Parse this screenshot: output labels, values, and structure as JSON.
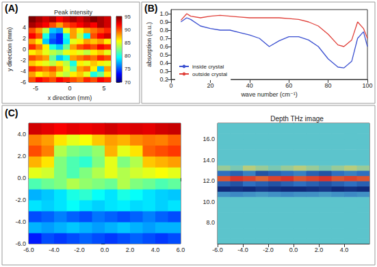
{
  "chart_data": [
    {
      "type": "heatmap",
      "panel": "(A)",
      "title": "Peak intensity",
      "xlabel": "x direction (mm)",
      "ylabel": "y direction (mm)",
      "xlim": [
        -6,
        6
      ],
      "ylim": [
        -6,
        6
      ],
      "xticks": [
        -5,
        0,
        5
      ],
      "yticks": [
        -6,
        -4,
        -2,
        0,
        2,
        4
      ],
      "grid": false,
      "x": [
        -5.5,
        -4.5,
        -3.5,
        -2.5,
        -1.5,
        -0.5,
        0.5,
        1.5,
        2.5,
        3.5,
        4.5,
        5.5
      ],
      "y": [
        -5.5,
        -4.5,
        -3.5,
        -2.5,
        -1.5,
        -0.5,
        0.5,
        1.5,
        2.5,
        3.5,
        4.5,
        5.5
      ],
      "cells": [
        [
          90,
          92,
          91,
          90,
          92,
          91,
          90,
          89,
          91,
          90,
          92,
          91
        ],
        [
          88,
          86,
          87,
          88,
          85,
          84,
          86,
          87,
          85,
          80,
          82,
          86
        ],
        [
          91,
          90,
          89,
          90,
          88,
          85,
          82,
          88,
          89,
          86,
          78,
          88
        ],
        [
          87,
          86,
          85,
          84,
          86,
          84,
          80,
          86,
          85,
          87,
          86,
          85
        ],
        [
          90,
          89,
          88,
          82,
          78,
          80,
          88,
          89,
          90,
          89,
          91,
          90
        ],
        [
          86,
          87,
          85,
          84,
          83,
          85,
          86,
          85,
          84,
          86,
          87,
          85
        ],
        [
          91,
          89,
          86,
          80,
          78,
          82,
          88,
          90,
          91,
          90,
          92,
          91
        ],
        [
          88,
          86,
          78,
          75,
          74,
          79,
          85,
          86,
          88,
          87,
          88,
          86
        ],
        [
          92,
          90,
          80,
          76,
          74,
          80,
          88,
          84,
          79,
          90,
          92,
          93
        ],
        [
          90,
          88,
          84,
          78,
          77,
          85,
          88,
          86,
          88,
          89,
          90,
          91
        ],
        [
          94,
          93,
          92,
          90,
          88,
          90,
          91,
          92,
          93,
          92,
          94,
          93
        ],
        [
          95,
          94,
          93,
          94,
          92,
          93,
          94,
          93,
          94,
          95,
          94,
          93
        ]
      ],
      "zlim": [
        70,
        95
      ],
      "colorbar_ticks": [
        70,
        75,
        80,
        85,
        90,
        95
      ]
    },
    {
      "type": "line",
      "panel": "(B)",
      "xlabel": "wave number (cm⁻¹)",
      "ylabel": "absorption (a.u.)",
      "xlim": [
        0,
        100
      ],
      "ylim": [
        0.2,
        1.05
      ],
      "xticks": [
        0,
        20,
        40,
        60,
        80,
        100
      ],
      "yticks": [
        0.2,
        0.3,
        0.4,
        0.5,
        0.6,
        0.7,
        0.8,
        0.9,
        {
          "value": 1,
          "label": "1.0"
        }
      ],
      "grid": false,
      "legend": "lower left",
      "x": [
        5,
        8,
        10,
        15,
        20,
        25,
        30,
        35,
        40,
        45,
        50,
        55,
        60,
        65,
        70,
        75,
        80,
        85,
        88,
        92,
        95,
        98,
        100
      ],
      "series": [
        {
          "name": "inside crystal",
          "color": "#3a4fd0",
          "values": [
            0.9,
            0.95,
            0.93,
            0.85,
            0.82,
            0.8,
            0.8,
            0.77,
            0.74,
            0.7,
            0.6,
            0.67,
            0.72,
            0.72,
            0.68,
            0.6,
            0.45,
            0.35,
            0.34,
            0.42,
            0.7,
            0.78,
            0.6
          ]
        },
        {
          "name": "outside crystal",
          "color": "#e0403a",
          "values": [
            0.92,
            1.0,
            0.97,
            0.95,
            0.97,
            0.98,
            0.97,
            0.96,
            0.95,
            0.95,
            0.95,
            0.95,
            0.94,
            0.93,
            0.9,
            0.85,
            0.75,
            0.62,
            0.6,
            0.68,
            0.9,
            0.82,
            0.7
          ]
        }
      ]
    },
    {
      "type": "heatmap",
      "panel": "(C)",
      "xlim": [
        -6,
        6
      ],
      "ylim": [
        -6,
        5
      ],
      "xticks": [
        {
          "value": -6,
          "label": "-6.0"
        },
        {
          "value": -4,
          "label": "-4.0"
        },
        {
          "value": -2,
          "label": "-2.0"
        },
        {
          "value": 0,
          "label": "0.0"
        },
        {
          "value": 2,
          "label": "2.0"
        },
        {
          "value": 4,
          "label": "4.0"
        },
        {
          "value": 6,
          "label": "6.0"
        }
      ],
      "yticks": [
        {
          "value": -6,
          "label": "-6.0"
        },
        {
          "value": -4,
          "label": "-4.0"
        },
        {
          "value": -2,
          "label": "-2.0"
        },
        {
          "value": 0,
          "label": "0.0"
        },
        {
          "value": 2,
          "label": "2.0"
        },
        {
          "value": 4,
          "label": "4.0"
        }
      ],
      "grid": false,
      "x": [
        -5.5,
        -4.5,
        -3.5,
        -2.5,
        -1.5,
        -0.5,
        0.5,
        1.5,
        2.5,
        3.5,
        4.5,
        5.5
      ],
      "y": [
        -5.5,
        -4.5,
        -3.5,
        -2.5,
        -1.5,
        -0.5,
        0.5,
        1.5,
        2.5,
        3.5,
        4.5
      ],
      "cells": [
        [
          0.15,
          0.2,
          0.18,
          0.2,
          0.22,
          0.2,
          0.18,
          0.2,
          0.22,
          0.2,
          0.18,
          0.2
        ],
        [
          0.3,
          0.28,
          0.3,
          0.32,
          0.3,
          0.28,
          0.3,
          0.32,
          0.3,
          0.28,
          0.3,
          0.3
        ],
        [
          0.2,
          0.22,
          0.25,
          0.22,
          0.2,
          0.24,
          0.22,
          0.2,
          0.22,
          0.25,
          0.22,
          0.2
        ],
        [
          0.35,
          0.33,
          0.35,
          0.38,
          0.35,
          0.33,
          0.35,
          0.36,
          0.34,
          0.35,
          0.33,
          0.35
        ],
        [
          0.3,
          0.32,
          0.35,
          0.4,
          0.42,
          0.38,
          0.35,
          0.4,
          0.38,
          0.35,
          0.33,
          0.32
        ],
        [
          0.45,
          0.48,
          0.5,
          0.55,
          0.52,
          0.5,
          0.48,
          0.55,
          0.5,
          0.48,
          0.45,
          0.47
        ],
        [
          0.6,
          0.58,
          0.5,
          0.45,
          0.5,
          0.55,
          0.6,
          0.55,
          0.58,
          0.6,
          0.62,
          0.6
        ],
        [
          0.7,
          0.65,
          0.5,
          0.45,
          0.42,
          0.5,
          0.6,
          0.5,
          0.55,
          0.68,
          0.7,
          0.72
        ],
        [
          0.8,
          0.75,
          0.55,
          0.5,
          0.48,
          0.52,
          0.7,
          0.6,
          0.65,
          0.78,
          0.8,
          0.82
        ],
        [
          0.75,
          0.72,
          0.65,
          0.6,
          0.62,
          0.68,
          0.72,
          0.7,
          0.74,
          0.76,
          0.75,
          0.78
        ],
        [
          0.92,
          0.9,
          0.88,
          0.9,
          0.89,
          0.9,
          0.92,
          0.9,
          0.91,
          0.9,
          0.92,
          0.93
        ]
      ],
      "zlim": [
        0,
        1
      ]
    },
    {
      "type": "heatmap",
      "title": "Depth THz image",
      "xlim": [
        -6,
        6
      ],
      "ylim": [
        6,
        17.5
      ],
      "xticks": [
        {
          "value": -6,
          "label": "-6.0"
        },
        {
          "value": -4,
          "label": "-4.0"
        },
        {
          "value": -2,
          "label": "-2.0"
        },
        {
          "value": 0,
          "label": "0.0"
        },
        {
          "value": 2,
          "label": "2.0"
        },
        {
          "value": 4,
          "label": "4.0"
        }
      ],
      "yticks": [
        {
          "value": 8,
          "label": "8.0"
        },
        {
          "value": 10,
          "label": "10.0"
        },
        {
          "value": 12,
          "label": "12.0"
        },
        {
          "value": 14,
          "label": "14.0"
        },
        {
          "value": 16,
          "label": "16.0"
        }
      ],
      "grid": false,
      "x": [
        -5.5,
        -4.5,
        -3.5,
        -2.5,
        -1.5,
        -0.5,
        0.5,
        1.5,
        2.5,
        3.5,
        4.5,
        5.5
      ],
      "y": [
        6.25,
        6.75,
        7.25,
        7.75,
        8.25,
        8.75,
        9.25,
        9.75,
        10.25,
        10.75,
        11.25,
        11.75,
        12.25,
        12.75,
        13.25,
        13.75,
        14.25,
        14.75,
        15.25,
        15.75,
        16.25,
        16.75,
        17.25
      ],
      "cells": [
        [
          0,
          0,
          0,
          0,
          0,
          0,
          0,
          0,
          0,
          0,
          0,
          0
        ],
        [
          0,
          0,
          0,
          0,
          0,
          0,
          0,
          0,
          0,
          0,
          0,
          0
        ],
        [
          0,
          0,
          0,
          0,
          0,
          0,
          0,
          0,
          0,
          0,
          0,
          0
        ],
        [
          0,
          0,
          0,
          0,
          0,
          0,
          0,
          0,
          0,
          0,
          0,
          0
        ],
        [
          0,
          0,
          0,
          0,
          0,
          0,
          0,
          0,
          0,
          0,
          0,
          0
        ],
        [
          0,
          0,
          0,
          0,
          0,
          0,
          0,
          0,
          0,
          0,
          0,
          0
        ],
        [
          0,
          0,
          0,
          0,
          0,
          0,
          0,
          0,
          0,
          0,
          0,
          0
        ],
        [
          0,
          0,
          0,
          0,
          0,
          0,
          0,
          0,
          0,
          0,
          0,
          0
        ],
        [
          0,
          0,
          0,
          0,
          0,
          0,
          0,
          0,
          0,
          0,
          0,
          0
        ],
        [
          -0.3,
          -0.35,
          -0.3,
          -0.25,
          -0.3,
          -0.35,
          -0.3,
          -0.3,
          -0.25,
          -0.3,
          -0.35,
          -0.3
        ],
        [
          -1,
          -0.95,
          -1,
          -0.9,
          -0.95,
          -1,
          -1,
          -0.95,
          -0.9,
          -1,
          -0.95,
          -1
        ],
        [
          -0.6,
          -0.7,
          -0.5,
          -0.6,
          -0.7,
          -0.6,
          -0.5,
          -0.6,
          -0.7,
          -0.6,
          -0.5,
          -0.6
        ],
        [
          0.9,
          1,
          0.95,
          0.85,
          0.95,
          1,
          0.9,
          0.95,
          1,
          0.9,
          0.95,
          0.9
        ],
        [
          -0.5,
          -0.6,
          -0.4,
          -0.7,
          -0.6,
          -0.5,
          -0.4,
          -0.6,
          -0.7,
          -0.5,
          -0.4,
          -0.5
        ],
        [
          0.2,
          0.1,
          0.3,
          0.2,
          0.1,
          0.2,
          0.3,
          0.2,
          0.1,
          0.2,
          0.3,
          0.2
        ],
        [
          0,
          0,
          0,
          0,
          0,
          0,
          0,
          0,
          0,
          0,
          0,
          0
        ],
        [
          0,
          0,
          0,
          0,
          0,
          0,
          0,
          0,
          0,
          0,
          0,
          0
        ],
        [
          0,
          0,
          0,
          0,
          0,
          0,
          0,
          0,
          0,
          0,
          0,
          0
        ],
        [
          0,
          0,
          0,
          0,
          0,
          0,
          0,
          0,
          0,
          0,
          0,
          0
        ],
        [
          0,
          0,
          0,
          0,
          0,
          0,
          0,
          0,
          0,
          0,
          0,
          0
        ],
        [
          0,
          0,
          0,
          0,
          0,
          0,
          0,
          0,
          0,
          0,
          0,
          0
        ],
        [
          0,
          0,
          0,
          0,
          0,
          0,
          0,
          0,
          0,
          0,
          0,
          0
        ],
        [
          0,
          0,
          0,
          0,
          0,
          0,
          0,
          0,
          0,
          0,
          0,
          0
        ]
      ],
      "zlim": [
        -1,
        1
      ]
    }
  ]
}
